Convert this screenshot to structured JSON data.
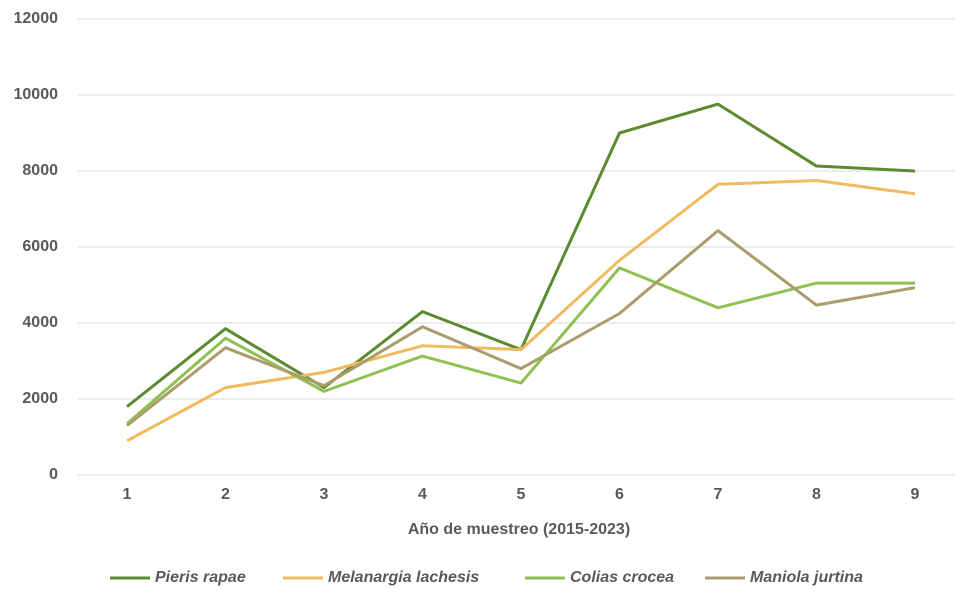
{
  "chart_data": {
    "type": "line",
    "x_label": "Año de muestreo (2015-2023)",
    "categories": [
      "1",
      "2",
      "3",
      "4",
      "5",
      "6",
      "7",
      "8",
      "9"
    ],
    "series": [
      {
        "name": "Pieris rapae",
        "color": "#5b8a2f",
        "values": [
          1800,
          3850,
          2300,
          4300,
          3300,
          9000,
          9760,
          8130,
          8000
        ]
      },
      {
        "name": "Melanargia lachesis",
        "color": "#f0bb5f",
        "values": [
          900,
          2300,
          2700,
          3400,
          3300,
          5650,
          7650,
          7750,
          7400
        ]
      },
      {
        "name": "Colias crocea",
        "color": "#8fc152",
        "values": [
          1350,
          3600,
          2200,
          3130,
          2420,
          5450,
          4400,
          5050,
          5050
        ]
      },
      {
        "name": "Maniola jurtina",
        "color": "#ab9c6c",
        "values": [
          1300,
          3350,
          2350,
          3900,
          2800,
          4250,
          6430,
          4470,
          4930
        ]
      }
    ],
    "ylim": [
      0,
      12000
    ],
    "yticks": [
      0,
      2000,
      4000,
      6000,
      8000,
      10000,
      12000
    ],
    "grid": true,
    "legend": "bottom"
  }
}
